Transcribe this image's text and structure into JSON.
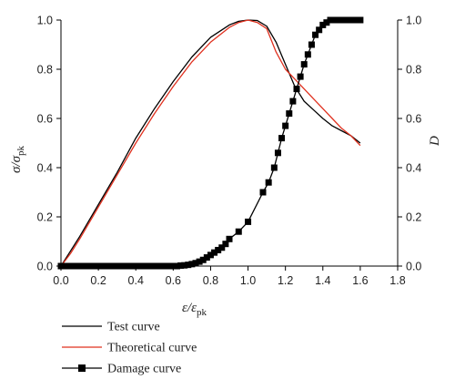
{
  "chart_data": {
    "type": "line",
    "xlabel": "ε/ε",
    "xlabel_sub": "pk",
    "ylabel": "σ/σ",
    "ylabel_sub": "pk",
    "y2label": "D",
    "xlim": [
      0.0,
      1.8
    ],
    "ylim": [
      0.0,
      1.0
    ],
    "y2lim": [
      0.0,
      1.0
    ],
    "x_ticks": [
      "0.0",
      "0.2",
      "0.4",
      "0.6",
      "0.8",
      "1.0",
      "1.2",
      "1.4",
      "1.6",
      "1.8"
    ],
    "y_ticks": [
      "0.0",
      "0.2",
      "0.4",
      "0.6",
      "0.8",
      "1.0"
    ],
    "y2_ticks": [
      "0.0",
      "0.2",
      "0.4",
      "0.6",
      "0.8",
      "1.0"
    ],
    "grid": false,
    "legend_position": "below-left",
    "series": [
      {
        "name": "Test curve",
        "color": "#000000",
        "axis": "left",
        "marker": "none",
        "x": [
          0.0,
          0.05,
          0.1,
          0.2,
          0.3,
          0.4,
          0.5,
          0.6,
          0.7,
          0.8,
          0.9,
          0.95,
          1.0,
          1.05,
          1.1,
          1.15,
          1.2,
          1.25,
          1.3,
          1.35,
          1.4,
          1.45,
          1.5,
          1.55,
          1.6
        ],
        "y": [
          0.0,
          0.06,
          0.12,
          0.25,
          0.38,
          0.52,
          0.64,
          0.75,
          0.85,
          0.93,
          0.98,
          0.995,
          1.0,
          0.998,
          0.975,
          0.91,
          0.82,
          0.73,
          0.67,
          0.635,
          0.6,
          0.57,
          0.55,
          0.53,
          0.5
        ]
      },
      {
        "name": "Theoretical curve",
        "color": "#e0301e",
        "axis": "left",
        "marker": "none",
        "x": [
          0.0,
          0.05,
          0.1,
          0.2,
          0.3,
          0.4,
          0.5,
          0.6,
          0.7,
          0.8,
          0.9,
          0.95,
          1.0,
          1.05,
          1.1,
          1.15,
          1.2,
          1.25,
          1.3,
          1.35,
          1.4,
          1.45,
          1.5,
          1.55,
          1.6
        ],
        "y": [
          0.0,
          0.05,
          0.11,
          0.24,
          0.37,
          0.5,
          0.62,
          0.73,
          0.83,
          0.91,
          0.97,
          0.99,
          1.0,
          0.99,
          0.965,
          0.87,
          0.8,
          0.76,
          0.72,
          0.68,
          0.64,
          0.6,
          0.56,
          0.53,
          0.49
        ]
      },
      {
        "name": "Damage curve",
        "color": "#000000",
        "axis": "right",
        "marker": "square",
        "x": [
          0.0,
          0.02,
          0.04,
          0.06,
          0.08,
          0.1,
          0.12,
          0.14,
          0.16,
          0.18,
          0.2,
          0.22,
          0.24,
          0.26,
          0.28,
          0.3,
          0.32,
          0.34,
          0.36,
          0.38,
          0.4,
          0.42,
          0.44,
          0.46,
          0.48,
          0.5,
          0.52,
          0.54,
          0.56,
          0.58,
          0.6,
          0.62,
          0.64,
          0.66,
          0.68,
          0.7,
          0.72,
          0.74,
          0.76,
          0.78,
          0.8,
          0.82,
          0.84,
          0.86,
          0.88,
          0.9,
          0.95,
          1.0,
          1.08,
          1.11,
          1.14,
          1.16,
          1.18,
          1.2,
          1.22,
          1.24,
          1.26,
          1.28,
          1.3,
          1.32,
          1.34,
          1.36,
          1.38,
          1.4,
          1.42,
          1.44,
          1.46,
          1.48,
          1.5,
          1.52,
          1.54,
          1.56,
          1.58,
          1.6
        ],
        "y": [
          0.0,
          0.0,
          0.0,
          0.0,
          0.0,
          0.0,
          0.0,
          0.0,
          0.0,
          0.0,
          0.0,
          0.0,
          0.0,
          0.0,
          0.0,
          0.0,
          0.0,
          0.0,
          0.0,
          0.0,
          0.0,
          0.0,
          0.0,
          0.0,
          0.0,
          0.0,
          0.0,
          0.0,
          0.0,
          0.0,
          0.0,
          0.0,
          0.002,
          0.003,
          0.005,
          0.008,
          0.012,
          0.018,
          0.025,
          0.035,
          0.045,
          0.055,
          0.065,
          0.075,
          0.09,
          0.11,
          0.14,
          0.18,
          0.3,
          0.34,
          0.4,
          0.46,
          0.52,
          0.57,
          0.62,
          0.67,
          0.72,
          0.77,
          0.82,
          0.86,
          0.9,
          0.94,
          0.96,
          0.98,
          0.99,
          1.0,
          1.0,
          1.0,
          1.0,
          1.0,
          1.0,
          1.0,
          1.0,
          1.0
        ]
      }
    ]
  }
}
